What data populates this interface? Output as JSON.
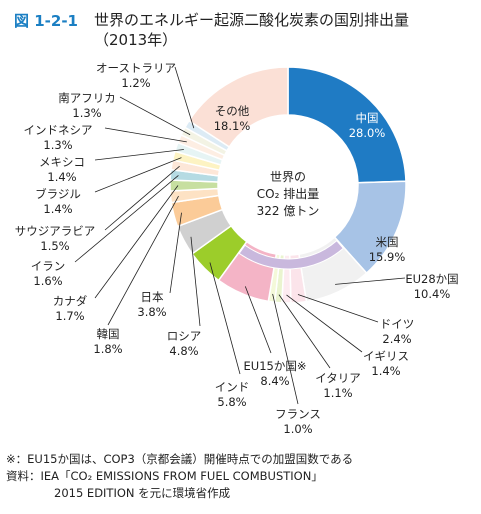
{
  "figure_label": "図 1-2-1",
  "title_line1": "世界のエネルギー起源二酸化炭素の国別排出量",
  "title_line2": "（2013年）",
  "center": {
    "line1": "世界の",
    "line2": "CO₂ 排出量",
    "line3": "322 億トン"
  },
  "notes": {
    "note": "※：EU15か国は、COP3（京都会議）開催時点での加盟国数である",
    "source1": "資料：IEA「CO₂ EMISSIONS FROM FUEL COMBUSTION」",
    "source2": "2015 EDITION を元に環境省作成"
  },
  "chart_data": {
    "type": "pie",
    "style": "donut",
    "start": "12 o'clock, clockwise",
    "unit": "%",
    "slices": [
      {
        "label": "中国",
        "value": 28.0,
        "value_text": "28.0%",
        "color": "#1f7bc4"
      },
      {
        "label": "米国",
        "value": 15.9,
        "value_text": "15.9%",
        "color": "#a7c3e6"
      },
      {
        "label": "EU28か国",
        "value": 10.4,
        "value_text": "10.4%",
        "color": "#f1f1f1",
        "group": "EU28"
      },
      {
        "label": "ドイツ",
        "value": 2.4,
        "value_text": "2.4%",
        "color": "#fbe4ea",
        "group": "EU28"
      },
      {
        "label": "イギリス",
        "value": 1.4,
        "value_text": "1.4%",
        "color": "#fdebf0",
        "group": "EU28"
      },
      {
        "label": "イタリア",
        "value": 1.1,
        "value_text": "1.1%",
        "color": "#eaf4cf",
        "group": "EU28"
      },
      {
        "label": "フランス",
        "value": 1.0,
        "value_text": "1.0%",
        "color": "#f4f9d9",
        "group": "EU28"
      },
      {
        "label": "EU15か国※",
        "value": 8.4,
        "value_text": "8.4%",
        "color": "#f4b4c6",
        "group": "EU28"
      },
      {
        "label": "インド",
        "value": 5.8,
        "value_text": "5.8%",
        "color": "#9ccd2a"
      },
      {
        "label": "ロシア",
        "value": 4.8,
        "value_text": "4.8%",
        "color": "#d0d0d0"
      },
      {
        "label": "日本",
        "value": 3.8,
        "value_text": "3.8%",
        "color": "#fbcb98"
      },
      {
        "label": "韓国",
        "value": 1.8,
        "value_text": "1.8%",
        "color": "#fde2c4"
      },
      {
        "label": "カナダ",
        "value": 1.7,
        "value_text": "1.7%",
        "color": "#c7dfa0"
      },
      {
        "label": "イラン",
        "value": 1.6,
        "value_text": "1.6%",
        "color": "#b5dbe3"
      },
      {
        "label": "サウジアラビア",
        "value": 1.5,
        "value_text": "1.5%",
        "color": "#fde7d8"
      },
      {
        "label": "ブラジル",
        "value": 1.4,
        "value_text": "1.4%",
        "color": "#fdf3c3"
      },
      {
        "label": "メキシコ",
        "value": 1.4,
        "value_text": "1.4%",
        "color": "#e6f4f4"
      },
      {
        "label": "インドネシア",
        "value": 1.3,
        "value_text": "1.3%",
        "color": "#fdeee3"
      },
      {
        "label": "南アフリカ",
        "value": 1.3,
        "value_text": "1.3%",
        "color": "#f3f3e4"
      },
      {
        "label": "オーストラリア",
        "value": 1.2,
        "value_text": "1.2%",
        "color": "#dcebf5"
      },
      {
        "label": "その他",
        "value": 18.1,
        "value_text": "18.1%",
        "color": "#fbe0d6"
      }
    ]
  }
}
